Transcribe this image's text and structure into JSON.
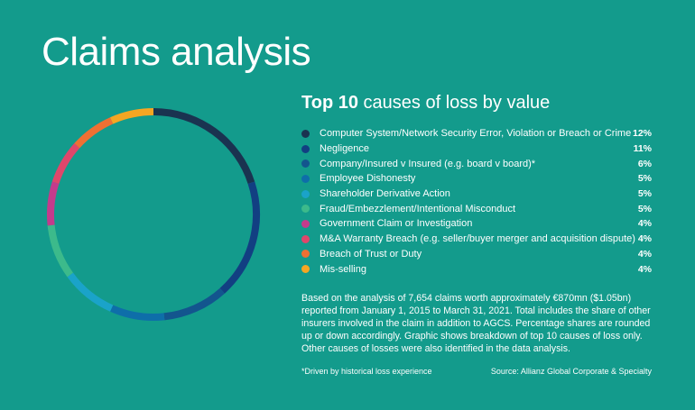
{
  "page": {
    "title": "Claims analysis",
    "footnote": "*Driven by historical loss experience",
    "source": "Source: Allianz Global Corporate & Specialty",
    "note": "Based on the analysis of 7,654 claims worth approximately €870mn ($1.05bn) reported from January 1, 2015 to March 31, 2021. Total includes the share of other insurers involved in the claim in addition to AGCS. Percentage shares are rounded up or down accordingly. Graphic shows breakdown of top 10 causes of loss only. Other causes of losses were also identified in the data analysis."
  },
  "chart_data": {
    "type": "pie",
    "title_bold": "Top 10",
    "title_rest": " causes of loss by value",
    "legend_position": "right",
    "categories": [
      "Computer System/Network Security Error, Violation or Breach or Crime",
      "Negligence",
      "Company/Insured v Insured (e.g. board v board)*",
      "Employee Dishonesty",
      "Shareholder Derivative Action",
      "Fraud/Embezzlement/Intentional Misconduct",
      "Government Claim or Investigation",
      "M&A Warranty Breach (e.g. seller/buyer merger and acquisition dispute)",
      "Breach of Trust or Duty",
      "Mis-selling"
    ],
    "values": [
      12,
      11,
      6,
      5,
      5,
      5,
      4,
      4,
      4,
      4
    ],
    "value_labels": [
      "12%",
      "11%",
      "6%",
      "5%",
      "5%",
      "5%",
      "4%",
      "4%",
      "4%",
      "4%"
    ],
    "colors": [
      "#1a3350",
      "#123f82",
      "#13558e",
      "#0e6ea9",
      "#1aa3c9",
      "#3cba8b",
      "#c43b8c",
      "#e0466b",
      "#ee7033",
      "#f5a623"
    ]
  }
}
